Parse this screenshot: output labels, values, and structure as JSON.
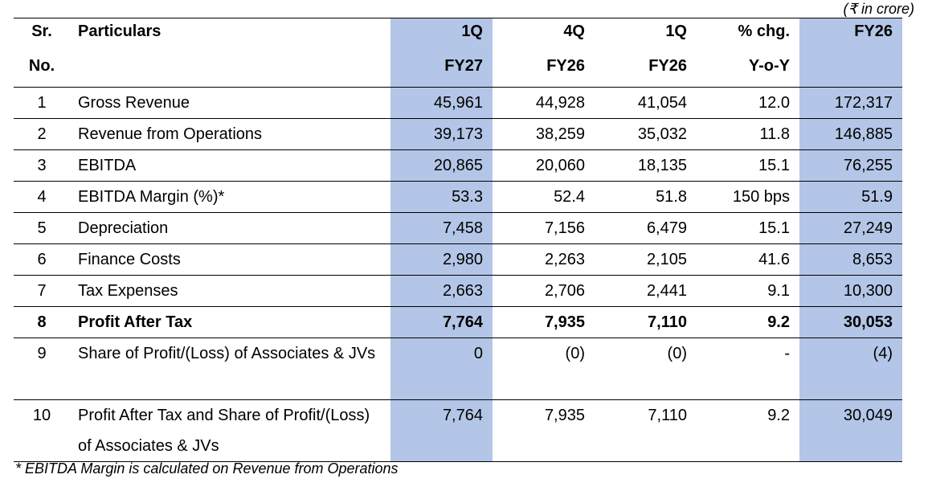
{
  "unit_note": "(₹ in crore)",
  "header": {
    "sr_line1": "Sr.",
    "sr_line2": "No.",
    "particulars": "Particulars",
    "col_q1_fy27": {
      "line1": "1Q",
      "line2": "FY27"
    },
    "col_q4_fy26": {
      "line1": "4Q",
      "line2": "FY26"
    },
    "col_q1_fy26": {
      "line1": "1Q",
      "line2": "FY26"
    },
    "col_chg": {
      "line1": "% chg.",
      "line2": "Y-o-Y"
    },
    "col_fy26": {
      "line1": "FY26",
      "line2": ""
    }
  },
  "rows": [
    {
      "sr": "1",
      "particular": "Gross Revenue",
      "q1_fy27": "45,961",
      "q4_fy26": "44,928",
      "q1_fy26": "41,054",
      "chg": "12.0",
      "fy26": "172,317"
    },
    {
      "sr": "2",
      "particular": "Revenue from Operations",
      "q1_fy27": "39,173",
      "q4_fy26": "38,259",
      "q1_fy26": "35,032",
      "chg": "11.8",
      "fy26": "146,885"
    },
    {
      "sr": "3",
      "particular": "EBITDA",
      "q1_fy27": "20,865",
      "q4_fy26": "20,060",
      "q1_fy26": "18,135",
      "chg": "15.1",
      "fy26": "76,255"
    },
    {
      "sr": "4",
      "particular": "EBITDA Margin (%)*",
      "q1_fy27": "53.3",
      "q4_fy26": "52.4",
      "q1_fy26": "51.8",
      "chg": "150 bps",
      "fy26": "51.9"
    },
    {
      "sr": "5",
      "particular": "Depreciation",
      "q1_fy27": "7,458",
      "q4_fy26": "7,156",
      "q1_fy26": "6,479",
      "chg": "15.1",
      "fy26": "27,249"
    },
    {
      "sr": "6",
      "particular": "Finance Costs",
      "q1_fy27": "2,980",
      "q4_fy26": "2,263",
      "q1_fy26": "2,105",
      "chg": "41.6",
      "fy26": "8,653"
    },
    {
      "sr": "7",
      "particular": "Tax Expenses",
      "q1_fy27": "2,663",
      "q4_fy26": "2,706",
      "q1_fy26": "2,441",
      "chg": "9.1",
      "fy26": "10,300"
    },
    {
      "sr": "8",
      "particular": "Profit After Tax",
      "q1_fy27": "7,764",
      "q4_fy26": "7,935",
      "q1_fy26": "7,110",
      "chg": "9.2",
      "fy26": "30,053"
    },
    {
      "sr": "9",
      "particular": "Share of Profit/(Loss) of Associates & JVs",
      "q1_fy27": "0",
      "q4_fy26": "(0)",
      "q1_fy26": "(0)",
      "chg": "-",
      "fy26": "(4)"
    },
    {
      "sr": "10",
      "particular": "Profit After Tax and Share of Profit/(Loss) of Associates & JVs",
      "q1_fy27": "7,764",
      "q4_fy26": "7,935",
      "q1_fy26": "7,110",
      "chg": "9.2",
      "fy26": "30,049"
    }
  ],
  "footnote": "* EBITDA Margin is calculated on Revenue from Operations",
  "colors": {
    "highlight": "#b4c6e7",
    "rule": "#000000"
  }
}
